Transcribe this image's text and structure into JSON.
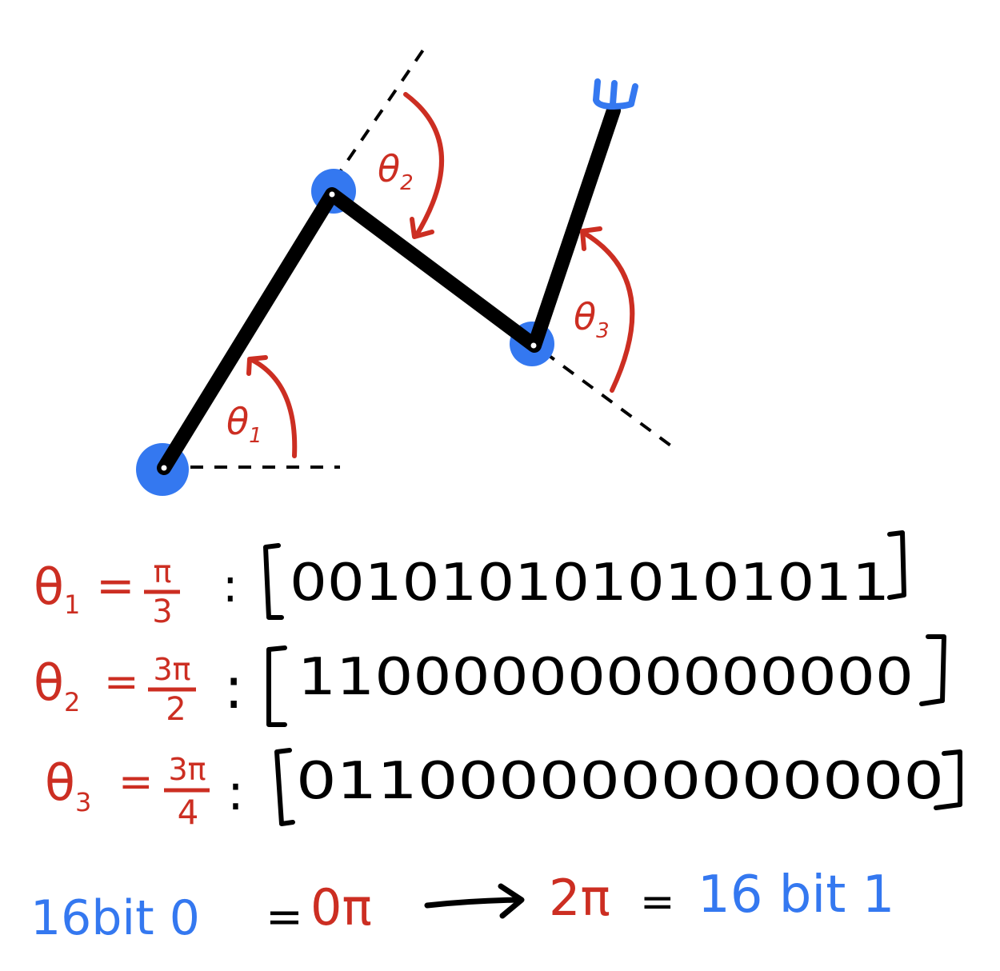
{
  "diagram": {
    "angle_labels": [
      {
        "symbol": "θ",
        "sub": "1"
      },
      {
        "symbol": "θ",
        "sub": "2"
      },
      {
        "symbol": "θ",
        "sub": "3"
      }
    ],
    "equations": [
      {
        "theta": "θ",
        "sub": "1",
        "eq": "=",
        "num": "π",
        "den": "3",
        "colon": ":",
        "bits": "0010101010101011"
      },
      {
        "theta": "θ",
        "sub": "2",
        "eq": "=",
        "num": "3π",
        "den": "2",
        "colon": ":",
        "bits": "1100000000000000"
      },
      {
        "theta": "θ",
        "sub": "3",
        "eq": "=",
        "num": "3π",
        "den": "4",
        "colon": ":",
        "bits": "0110000000000000"
      }
    ],
    "footer": {
      "left": "16bit 0",
      "eq1": "=",
      "zero": "0π",
      "two_pi": "2π",
      "eq2": "=",
      "right": "16 bit 1"
    },
    "colors": {
      "link": "#000000",
      "joint": "#3478f0",
      "angle": "#cc2e22",
      "text_black": "#000000",
      "text_blue": "#3478f0"
    }
  }
}
